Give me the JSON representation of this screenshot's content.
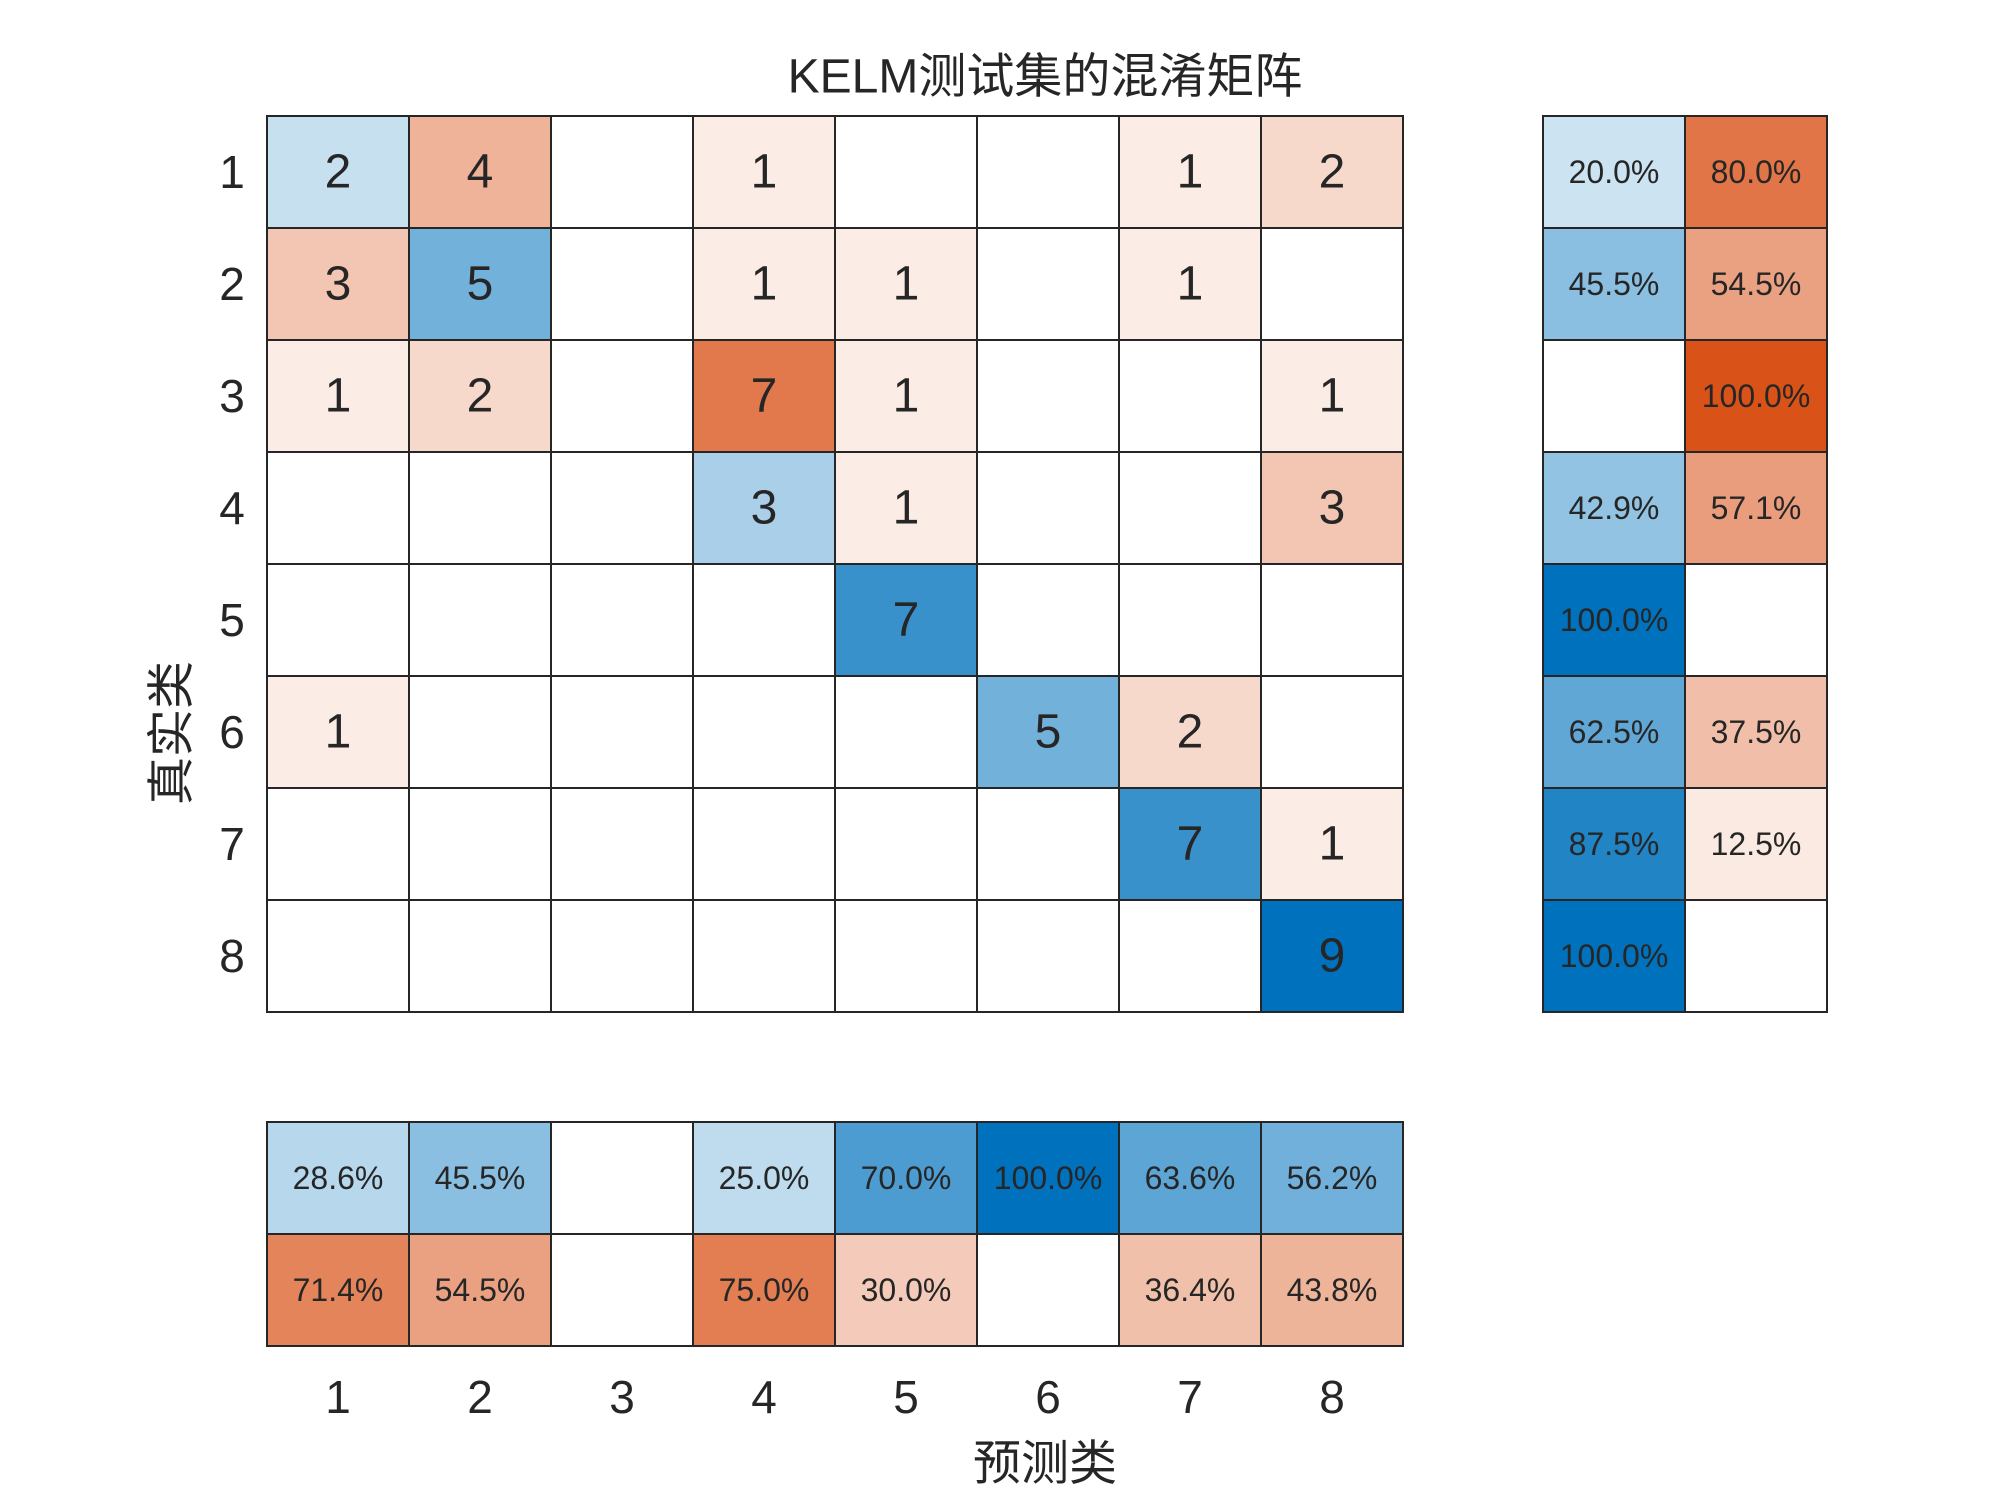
{
  "chart_data": {
    "type": "confusion",
    "title": "KELM测试集的混淆矩阵",
    "xlabel": "预测类",
    "ylabel": "真实类",
    "classes": [
      "1",
      "2",
      "3",
      "4",
      "5",
      "6",
      "7",
      "8"
    ],
    "matrix": [
      [
        2,
        4,
        null,
        1,
        null,
        null,
        1,
        2
      ],
      [
        3,
        5,
        null,
        1,
        1,
        null,
        1,
        null
      ],
      [
        1,
        2,
        null,
        7,
        1,
        null,
        null,
        1
      ],
      [
        null,
        null,
        null,
        3,
        1,
        null,
        null,
        3
      ],
      [
        null,
        null,
        null,
        null,
        7,
        null,
        null,
        null
      ],
      [
        1,
        null,
        null,
        null,
        null,
        5,
        2,
        null
      ],
      [
        null,
        null,
        null,
        null,
        null,
        null,
        7,
        1
      ],
      [
        null,
        null,
        null,
        null,
        null,
        null,
        null,
        9
      ]
    ],
    "row_summary": [
      {
        "values": [
          20.0,
          45.5,
          null,
          42.9,
          100.0,
          62.5,
          87.5,
          100.0
        ],
        "value_labels": [
          "20.0%",
          "45.5%",
          null,
          "42.9%",
          "100.0%",
          "62.5%",
          "87.5%",
          "100.0%"
        ]
      },
      {
        "values": [
          80.0,
          54.5,
          100.0,
          57.1,
          null,
          37.5,
          12.5,
          null
        ],
        "value_labels": [
          "80.0%",
          "54.5%",
          "100.0%",
          "57.1%",
          null,
          "37.5%",
          "12.5%",
          null
        ]
      }
    ],
    "column_summary": [
      {
        "values": [
          28.6,
          45.5,
          null,
          25.0,
          70.0,
          100.0,
          63.6,
          56.2
        ],
        "value_labels": [
          "28.6%",
          "45.5%",
          null,
          "25.0%",
          "70.0%",
          "100.0%",
          "63.6%",
          "56.2%"
        ]
      },
      {
        "values": [
          71.4,
          54.5,
          null,
          75.0,
          30.0,
          null,
          36.4,
          43.8
        ],
        "value_labels": [
          "71.4%",
          "54.5%",
          null,
          "75.0%",
          "30.0%",
          null,
          "36.4%",
          "43.8%"
        ]
      }
    ],
    "correct_color": "#0072bd",
    "incorrect_color": "#d95319"
  }
}
